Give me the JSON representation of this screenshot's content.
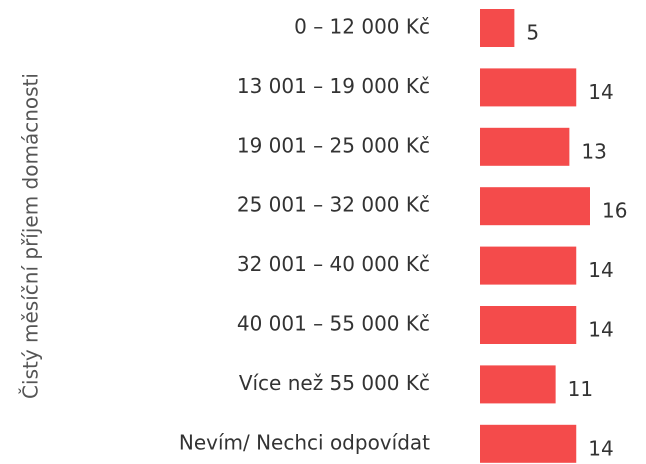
{
  "chart_data": {
    "type": "hbar",
    "ylabel": "Čistý měsíční příjem domácnosti",
    "categories": [
      "0 – 12 000 Kč",
      "13 001 – 19 000 Kč",
      "19 001 – 25 000 Kč",
      "25 001 – 32 000 Kč",
      "32 001 – 40 000 Kč",
      "40 001 – 55 000 Kč",
      "Více než 55 000 Kč",
      "Nevím/ Nechci odpovídat"
    ],
    "values": [
      5,
      14,
      13,
      16,
      14,
      14,
      11,
      14
    ],
    "color": "#f44b4b"
  }
}
